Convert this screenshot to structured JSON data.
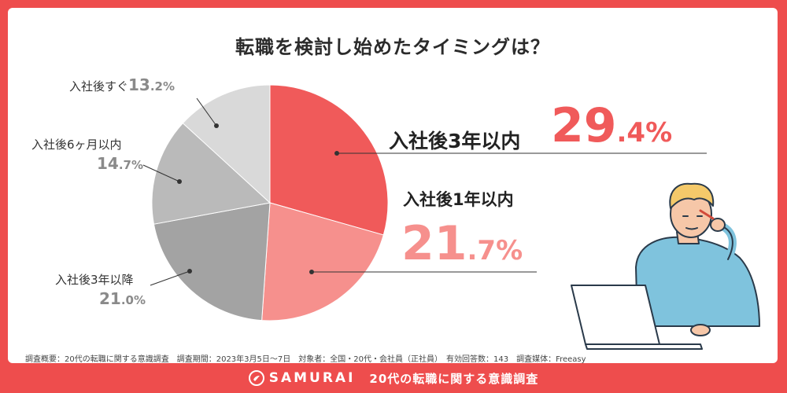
{
  "title": "転職を検討し始めたタイミングは？",
  "chart_data": {
    "type": "pie",
    "slices": [
      {
        "label": "入社後3年以内",
        "value": 29.4,
        "pct_int": "29",
        "pct_dec": ".4%",
        "color": "#f05a5a"
      },
      {
        "label": "入社後1年以内",
        "value": 21.7,
        "pct_int": "21",
        "pct_dec": ".7%",
        "color": "#f6908d"
      },
      {
        "label": "入社後3年以降",
        "value": 21.0,
        "pct_int": "21",
        "pct_dec": ".0%",
        "color": "#a3a3a3"
      },
      {
        "label": "入社後6ヶ月以内",
        "value": 14.7,
        "pct_int": "14",
        "pct_dec": ".7%",
        "color": "#bababa"
      },
      {
        "label": "入社後すぐ",
        "value": 13.2,
        "pct_int": "13",
        "pct_dec": ".2%",
        "color": "#d9d9d9"
      }
    ]
  },
  "footnote": "調査概要：20代の転職に関する意識調査　調査期間：2023年3月5日〜7日　対象者：全国・20代・会社員（正社員）　有効回答数：143　調査媒体：Freeasy",
  "footer": {
    "brand": "SAMURAI",
    "title": "20代の転職に関する意識調査"
  }
}
